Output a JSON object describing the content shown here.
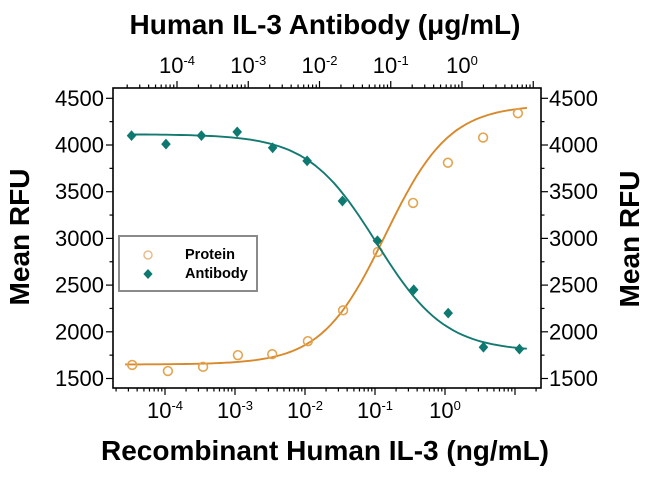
{
  "chart_data": {
    "type": "scatter",
    "title_top": "Human IL-3 Antibody (μg/mL)",
    "xlabel_bottom": "Recombinant Human IL-3 (ng/mL)",
    "ylabel_left": "Mean RFU",
    "ylabel_right": "Mean RFU",
    "y_axis": {
      "min": 1400,
      "max": 4610,
      "major_ticks": [
        1500,
        2000,
        2500,
        3000,
        3500,
        4000,
        4500
      ],
      "minor_ticks": [
        1750,
        2250,
        2750,
        3250,
        3750,
        4250
      ],
      "grid": false
    },
    "x_axis_top": {
      "scale": "log",
      "unit": "μg/mL",
      "log_min": -4.9,
      "log_max": 1.11,
      "labeled_ticks": [
        {
          "log": -4,
          "base": "10",
          "exp": "-4"
        },
        {
          "log": -3,
          "base": "10",
          "exp": "-3"
        },
        {
          "log": -2,
          "base": "10",
          "exp": "-2"
        },
        {
          "log": -1,
          "base": "10",
          "exp": "-1"
        },
        {
          "log": 0,
          "base": "10",
          "exp": "0"
        }
      ],
      "unlabeled_major_logs": [
        1
      ]
    },
    "x_axis_bottom": {
      "scale": "log",
      "unit": "ng/mL",
      "log_min": -4.74,
      "log_max": 1.37,
      "labeled_ticks": [
        {
          "log": -4,
          "base": "10",
          "exp": "-4"
        },
        {
          "log": -3,
          "base": "10",
          "exp": "-3"
        },
        {
          "log": -2,
          "base": "10",
          "exp": "-2"
        },
        {
          "log": -1,
          "base": "10",
          "exp": "-1"
        },
        {
          "log": 0,
          "base": "10",
          "exp": "0"
        }
      ],
      "unlabeled_major_logs": [
        1
      ]
    },
    "series": [
      {
        "name": "Protein",
        "axis": "bottom",
        "marker": "open-circle",
        "marker_color": "#E3A44F",
        "line_color": "#D8892B",
        "points": [
          [
            3.4e-05,
            1645
          ],
          [
            0.00011,
            1580
          ],
          [
            0.00035,
            1625
          ],
          [
            0.0011,
            1750
          ],
          [
            0.0034,
            1760
          ],
          [
            0.011,
            1900
          ],
          [
            0.035,
            2230
          ],
          [
            0.11,
            2855
          ],
          [
            0.35,
            3380
          ],
          [
            1.1,
            3810
          ],
          [
            3.5,
            4080
          ],
          [
            11,
            4340
          ]
        ],
        "fit": {
          "bottom": 1650,
          "top": 4430,
          "log_c": -0.85,
          "hill": 0.95,
          "trend": "up",
          "log_start": -4.57,
          "log_end": 1.17
        }
      },
      {
        "name": "Antibody",
        "axis": "top",
        "marker": "filled-diamond",
        "marker_color": "#0E7971",
        "line_color": "#137A72",
        "points": [
          [
            2.3e-05,
            4100
          ],
          [
            7e-05,
            4010
          ],
          [
            0.00022,
            4100
          ],
          [
            0.0007,
            4140
          ],
          [
            0.0022,
            3970
          ],
          [
            0.0067,
            3830
          ],
          [
            0.021,
            3400
          ],
          [
            0.065,
            2975
          ],
          [
            0.21,
            2450
          ],
          [
            0.64,
            2200
          ],
          [
            2.0,
            1835
          ],
          [
            6.4,
            1815
          ]
        ],
        "fit": {
          "bottom": 1790,
          "top": 4115,
          "log_c": -1.2,
          "hill": 0.9,
          "trend": "down",
          "log_start": -4.64,
          "log_end": 0.91
        }
      }
    ],
    "legend": {
      "position": "middle-left",
      "items": [
        {
          "label": "Protein"
        },
        {
          "label": "Antibody"
        }
      ]
    }
  },
  "colors": {
    "protein_line": "#D8892B",
    "protein_marker": "#E3A44F",
    "legend_circle": "#E9BE8C",
    "antibody": "#0E7971",
    "frame": "#000000",
    "legend_border": "#8A8A8A"
  }
}
